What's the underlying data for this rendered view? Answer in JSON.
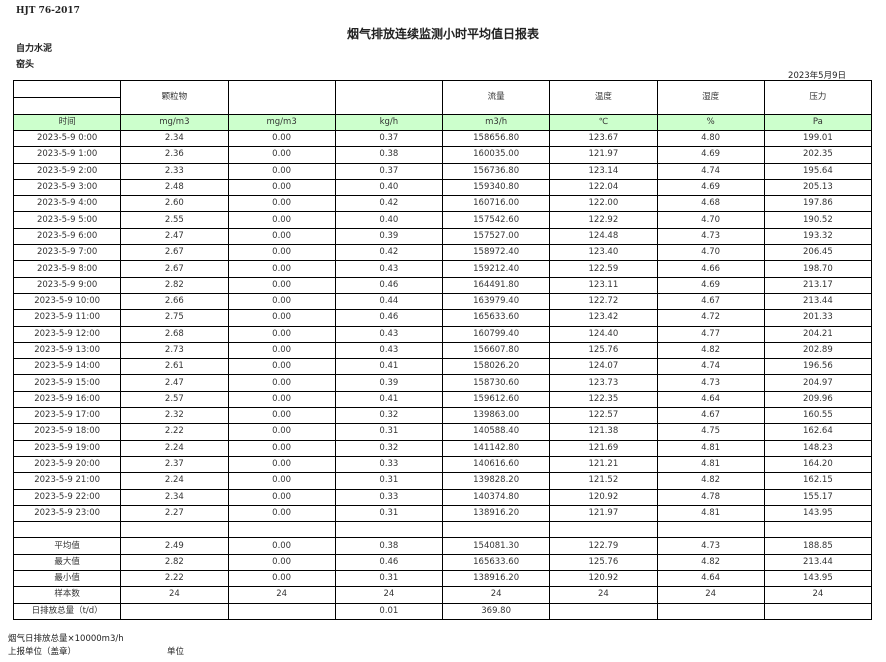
{
  "standard": "HJT  76-2017",
  "title": "烟气排放连续监测小时平均值日报表",
  "company": "自力水泥",
  "unit": "窑头",
  "date": "2023年5月9日",
  "headers": [
    "",
    "颗粒物",
    "",
    "",
    "流量",
    "温度",
    "湿度",
    "压力"
  ],
  "units": [
    "时间",
    "mg/m3",
    "mg/m3",
    "kg/h",
    "m3/h",
    "℃",
    "%",
    "Pa"
  ],
  "rows": [
    [
      "2023-5-9 0:00",
      "2.34",
      "0.00",
      "0.37",
      "158656.80",
      "123.67",
      "4.80",
      "199.01"
    ],
    [
      "2023-5-9 1:00",
      "2.36",
      "0.00",
      "0.38",
      "160035.00",
      "121.97",
      "4.69",
      "202.35"
    ],
    [
      "2023-5-9 2:00",
      "2.33",
      "0.00",
      "0.37",
      "156736.80",
      "123.14",
      "4.74",
      "195.64"
    ],
    [
      "2023-5-9 3:00",
      "2.48",
      "0.00",
      "0.40",
      "159340.80",
      "122.04",
      "4.69",
      "205.13"
    ],
    [
      "2023-5-9 4:00",
      "2.60",
      "0.00",
      "0.42",
      "160716.00",
      "122.00",
      "4.68",
      "197.86"
    ],
    [
      "2023-5-9 5:00",
      "2.55",
      "0.00",
      "0.40",
      "157542.60",
      "122.92",
      "4.70",
      "190.52"
    ],
    [
      "2023-5-9 6:00",
      "2.47",
      "0.00",
      "0.39",
      "157527.00",
      "124.48",
      "4.73",
      "193.32"
    ],
    [
      "2023-5-9 7:00",
      "2.67",
      "0.00",
      "0.42",
      "158972.40",
      "123.40",
      "4.70",
      "206.45"
    ],
    [
      "2023-5-9 8:00",
      "2.67",
      "0.00",
      "0.43",
      "159212.40",
      "122.59",
      "4.66",
      "198.70"
    ],
    [
      "2023-5-9 9:00",
      "2.82",
      "0.00",
      "0.46",
      "164491.80",
      "123.11",
      "4.69",
      "213.17"
    ],
    [
      "2023-5-9 10:00",
      "2.66",
      "0.00",
      "0.44",
      "163979.40",
      "122.72",
      "4.67",
      "213.44"
    ],
    [
      "2023-5-9 11:00",
      "2.75",
      "0.00",
      "0.46",
      "165633.60",
      "123.42",
      "4.72",
      "201.33"
    ],
    [
      "2023-5-9 12:00",
      "2.68",
      "0.00",
      "0.43",
      "160799.40",
      "124.40",
      "4.77",
      "204.21"
    ],
    [
      "2023-5-9 13:00",
      "2.73",
      "0.00",
      "0.43",
      "156607.80",
      "125.76",
      "4.82",
      "202.89"
    ],
    [
      "2023-5-9 14:00",
      "2.61",
      "0.00",
      "0.41",
      "158026.20",
      "124.07",
      "4.74",
      "196.56"
    ],
    [
      "2023-5-9 15:00",
      "2.47",
      "0.00",
      "0.39",
      "158730.60",
      "123.73",
      "4.73",
      "204.97"
    ],
    [
      "2023-5-9 16:00",
      "2.57",
      "0.00",
      "0.41",
      "159612.60",
      "122.35",
      "4.64",
      "209.96"
    ],
    [
      "2023-5-9 17:00",
      "2.32",
      "0.00",
      "0.32",
      "139863.00",
      "122.57",
      "4.67",
      "160.55"
    ],
    [
      "2023-5-9 18:00",
      "2.22",
      "0.00",
      "0.31",
      "140588.40",
      "121.38",
      "4.75",
      "162.64"
    ],
    [
      "2023-5-9 19:00",
      "2.24",
      "0.00",
      "0.32",
      "141142.80",
      "121.69",
      "4.81",
      "148.23"
    ],
    [
      "2023-5-9 20:00",
      "2.37",
      "0.00",
      "0.33",
      "140616.60",
      "121.21",
      "4.81",
      "164.20"
    ],
    [
      "2023-5-9 21:00",
      "2.24",
      "0.00",
      "0.31",
      "139828.20",
      "121.52",
      "4.82",
      "162.15"
    ],
    [
      "2023-5-9 22:00",
      "2.34",
      "0.00",
      "0.33",
      "140374.80",
      "120.92",
      "4.78",
      "155.17"
    ],
    [
      "2023-5-9 23:00",
      "2.27",
      "0.00",
      "0.31",
      "138916.20",
      "121.97",
      "4.81",
      "143.95"
    ],
    [
      "",
      "",
      "",
      "",
      "",
      "",
      "",
      ""
    ]
  ],
  "summary": [
    [
      "平均值",
      "2.49",
      "0.00",
      "0.38",
      "154081.30",
      "122.79",
      "4.73",
      "188.85"
    ],
    [
      "最大值",
      "2.82",
      "0.00",
      "0.46",
      "165633.60",
      "125.76",
      "4.82",
      "213.44"
    ],
    [
      "最小值",
      "2.22",
      "0.00",
      "0.31",
      "138916.20",
      "120.92",
      "4.64",
      "143.95"
    ],
    [
      "样本数",
      "24",
      "24",
      "24",
      "24",
      "24",
      "24",
      "24"
    ],
    [
      "日排放总量（t/d）",
      "",
      "",
      "0.01",
      "369.80",
      "",
      "",
      ""
    ]
  ],
  "footer": {
    "note": "烟气日排放总量×10000m3/h",
    "report_unit": "上报单位（盖章）",
    "unit_label": "单位"
  }
}
